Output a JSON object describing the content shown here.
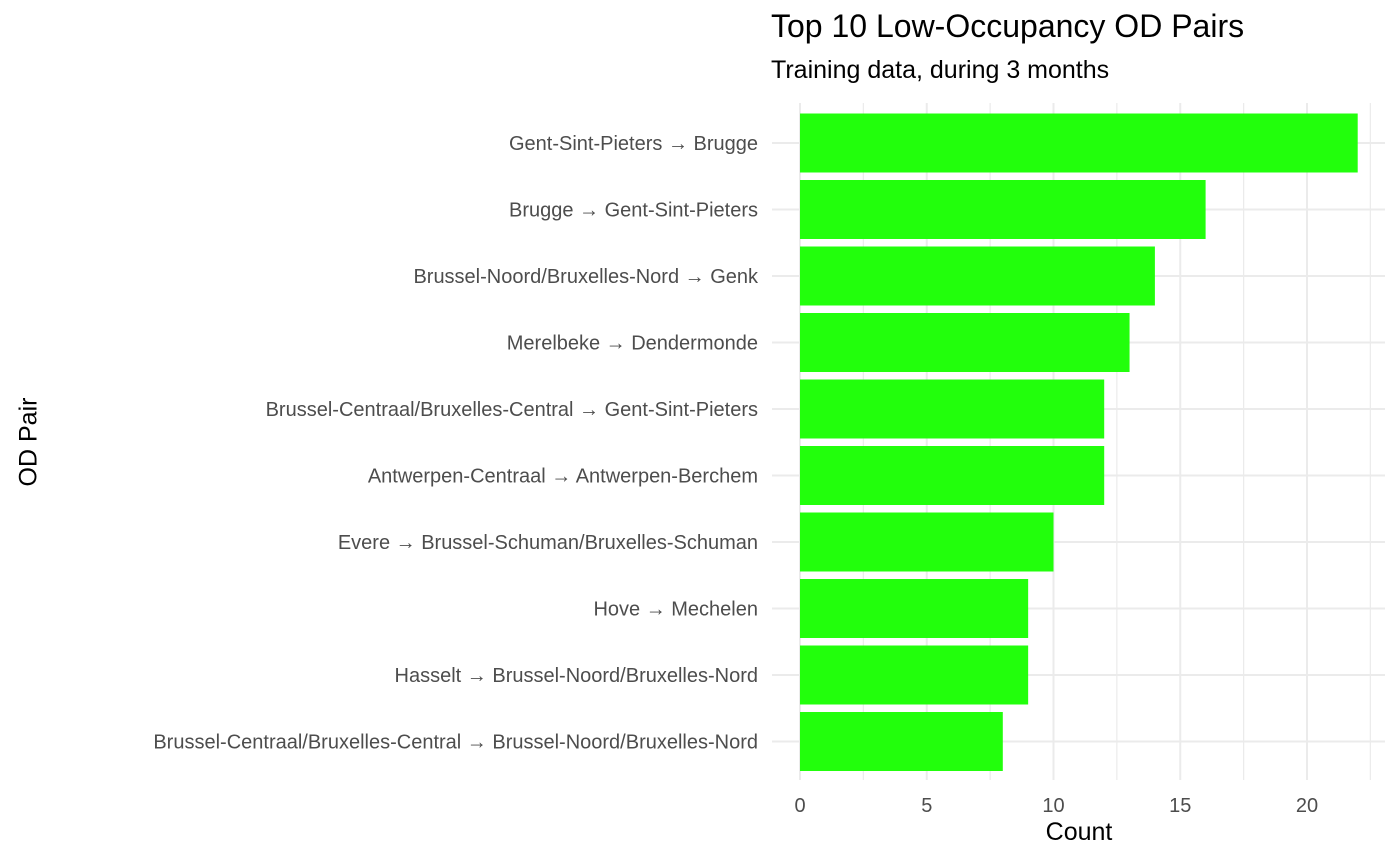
{
  "chart_data": {
    "type": "bar",
    "orientation": "horizontal",
    "title": "Top 10 Low-Occupancy OD Pairs",
    "subtitle": "Training data, during 3 months",
    "xlabel": "Count",
    "ylabel": "OD Pair",
    "categories": [
      "Gent-Sint-Pieters → Brugge",
      "Brugge → Gent-Sint-Pieters",
      "Brussel-Noord/Bruxelles-Nord → Genk",
      "Merelbeke → Dendermonde",
      "Brussel-Centraal/Bruxelles-Central → Gent-Sint-Pieters",
      "Antwerpen-Centraal → Antwerpen-Berchem",
      "Evere → Brussel-Schuman/Bruxelles-Schuman",
      "Hove → Mechelen",
      "Hasselt → Brussel-Noord/Bruxelles-Nord",
      "Brussel-Centraal/Bruxelles-Central → Brussel-Noord/Bruxelles-Nord"
    ],
    "values": [
      22,
      16,
      14,
      13,
      12,
      12,
      10,
      9,
      9,
      8
    ],
    "xlim": [
      0,
      23
    ],
    "xticks": [
      0,
      5,
      10,
      15,
      20
    ],
    "grid": true,
    "bar_color": "#22ff0c",
    "grid_color": "#ebebeb"
  }
}
